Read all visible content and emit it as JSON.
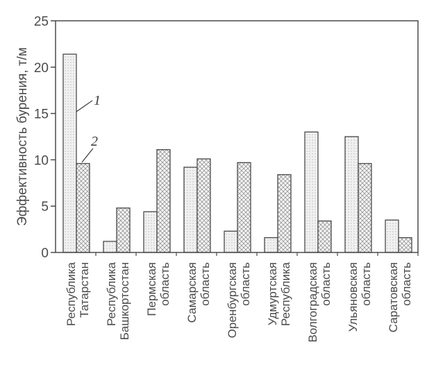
{
  "chart_data": {
    "type": "bar",
    "ylabel": "Эффективность бурения, т/м",
    "ylim": [
      0,
      25
    ],
    "yticks": [
      0,
      5,
      10,
      15,
      20,
      25
    ],
    "grid": false,
    "categories": [
      [
        "Республика",
        "Татарстан"
      ],
      [
        "Республика",
        "Башкортостан"
      ],
      [
        "Пермская",
        "область"
      ],
      [
        "Самарская",
        "область"
      ],
      [
        "Оренбургская",
        "область"
      ],
      [
        "Удмуртская",
        "Республика"
      ],
      [
        "Волгоградская",
        "область"
      ],
      [
        "Ульяновская",
        "область"
      ],
      [
        "Саратовская",
        "область"
      ]
    ],
    "series": [
      {
        "name": "1",
        "pattern": "dots",
        "values": [
          21.4,
          1.2,
          4.4,
          9.2,
          2.3,
          1.6,
          13.0,
          12.5,
          3.5
        ]
      },
      {
        "name": "2",
        "pattern": "crosshatch",
        "values": [
          9.6,
          4.8,
          11.1,
          10.1,
          9.7,
          8.4,
          3.4,
          9.6,
          1.6
        ]
      }
    ],
    "colors": {
      "axis": "#4a4a4a",
      "bar_fill": "#f1f1f1",
      "bar_stroke": "#4a4a4a",
      "pattern": "#8a8a8a"
    }
  }
}
